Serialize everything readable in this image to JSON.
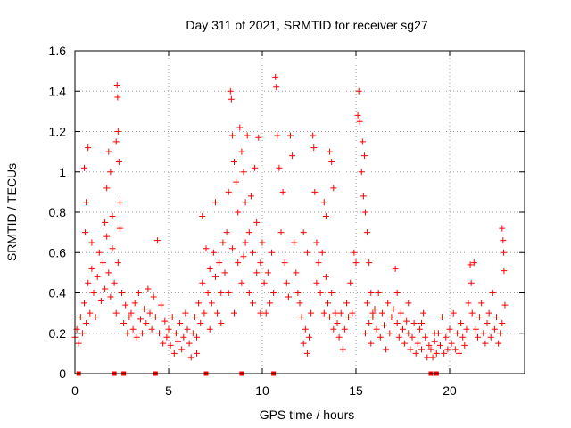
{
  "chart_data": {
    "type": "scatter",
    "title": "Day 311 of 2021, SRMTID for receiver sg27",
    "xlabel": "GPS time / hours",
    "ylabel": "SRMTID / TECUs",
    "xlim": [
      0,
      24
    ],
    "ylim": [
      0,
      1.6
    ],
    "x_ticks": [
      0,
      5,
      10,
      15,
      20
    ],
    "x_tick_labels": [
      "0",
      "5",
      "10",
      "15",
      "20"
    ],
    "y_ticks": [
      0,
      0.2,
      0.4,
      0.6,
      0.8,
      1,
      1.2,
      1.4,
      1.6
    ],
    "y_tick_labels": [
      "0",
      "0.2",
      "0.4",
      "0.6",
      "0.8",
      "1",
      "1.2",
      "1.4",
      "1.6"
    ],
    "grid": true,
    "marker": "+",
    "color": "#ff0000",
    "baseline_markers_x": [
      0.2,
      2.1,
      2.6,
      4.3,
      7.0,
      8.9,
      10.6,
      19.0,
      19.3
    ],
    "series": [
      {
        "name": "SRMTID",
        "points": [
          [
            0.0,
            0.18
          ],
          [
            0.1,
            0.22
          ],
          [
            0.2,
            0.15
          ],
          [
            0.3,
            0.28
          ],
          [
            0.4,
            0.2
          ],
          [
            0.5,
            0.35
          ],
          [
            0.6,
            0.25
          ],
          [
            0.7,
            0.45
          ],
          [
            0.8,
            0.3
          ],
          [
            0.9,
            0.52
          ],
          [
            1.0,
            0.4
          ],
          [
            1.1,
            0.28
          ],
          [
            1.2,
            0.48
          ],
          [
            1.3,
            0.6
          ],
          [
            1.4,
            0.36
          ],
          [
            1.5,
            0.55
          ],
          [
            1.6,
            0.42
          ],
          [
            1.7,
            0.68
          ],
          [
            1.8,
            0.5
          ],
          [
            1.9,
            0.38
          ],
          [
            2.0,
            0.62
          ],
          [
            2.1,
            0.45
          ],
          [
            2.2,
            0.3
          ],
          [
            2.3,
            0.55
          ],
          [
            2.4,
            0.72
          ],
          [
            2.5,
            0.4
          ],
          [
            2.6,
            0.25
          ],
          [
            2.7,
            0.34
          ],
          [
            2.8,
            0.2
          ],
          [
            2.9,
            0.28
          ],
          [
            0.55,
            0.7
          ],
          [
            0.6,
            0.85
          ],
          [
            0.7,
            1.12
          ],
          [
            0.5,
            1.02
          ],
          [
            1.7,
            0.92
          ],
          [
            1.8,
            1.1
          ],
          [
            1.9,
            1.0
          ],
          [
            2.0,
            0.78
          ],
          [
            2.2,
            1.15
          ],
          [
            2.25,
            1.43
          ],
          [
            2.28,
            1.37
          ],
          [
            2.3,
            1.2
          ],
          [
            2.35,
            1.05
          ],
          [
            2.4,
            0.85
          ],
          [
            1.6,
            0.75
          ],
          [
            0.9,
            0.65
          ],
          [
            3.0,
            0.3
          ],
          [
            3.1,
            0.22
          ],
          [
            3.2,
            0.35
          ],
          [
            3.3,
            0.18
          ],
          [
            3.4,
            0.4
          ],
          [
            3.5,
            0.27
          ],
          [
            3.6,
            0.2
          ],
          [
            3.7,
            0.32
          ],
          [
            3.8,
            0.25
          ],
          [
            3.9,
            0.42
          ],
          [
            4.0,
            0.3
          ],
          [
            4.1,
            0.22
          ],
          [
            4.2,
            0.38
          ],
          [
            4.3,
            0.28
          ],
          [
            4.4,
            0.66
          ],
          [
            4.5,
            0.2
          ],
          [
            4.6,
            0.34
          ],
          [
            4.7,
            0.15
          ],
          [
            4.8,
            0.26
          ],
          [
            4.9,
            0.18
          ],
          [
            5.0,
            0.22
          ],
          [
            5.1,
            0.14
          ],
          [
            5.2,
            0.28
          ],
          [
            5.3,
            0.1
          ],
          [
            5.4,
            0.2
          ],
          [
            5.5,
            0.16
          ],
          [
            5.6,
            0.25
          ],
          [
            5.7,
            0.12
          ],
          [
            5.8,
            0.18
          ],
          [
            5.9,
            0.3
          ],
          [
            6.0,
            0.22
          ],
          [
            6.1,
            0.15
          ],
          [
            6.2,
            0.08
          ],
          [
            6.3,
            0.2
          ],
          [
            6.4,
            0.28
          ],
          [
            6.5,
            0.18
          ],
          [
            6.6,
            0.35
          ],
          [
            6.7,
            0.25
          ],
          [
            6.8,
            0.45
          ],
          [
            6.9,
            0.3
          ],
          [
            7.0,
            0.62
          ],
          [
            7.1,
            0.4
          ],
          [
            7.2,
            0.52
          ],
          [
            7.3,
            0.35
          ],
          [
            7.4,
            0.6
          ],
          [
            7.5,
            0.48
          ],
          [
            7.6,
            0.3
          ],
          [
            7.7,
            0.55
          ],
          [
            7.8,
            0.4
          ],
          [
            7.9,
            0.65
          ],
          [
            6.8,
            0.78
          ],
          [
            7.5,
            0.85
          ],
          [
            7.8,
            0.25
          ],
          [
            7.2,
            0.22
          ],
          [
            6.5,
            0.1
          ],
          [
            8.0,
            0.5
          ],
          [
            8.1,
            0.7
          ],
          [
            8.2,
            0.9
          ],
          [
            8.3,
            1.4
          ],
          [
            8.35,
            1.36
          ],
          [
            8.4,
            1.18
          ],
          [
            8.5,
            1.05
          ],
          [
            8.6,
            0.95
          ],
          [
            8.7,
            0.8
          ],
          [
            8.8,
            1.22
          ],
          [
            8.9,
            1.1
          ],
          [
            9.0,
            1.0
          ],
          [
            9.1,
            0.85
          ],
          [
            9.2,
            1.18
          ],
          [
            9.3,
            0.7
          ],
          [
            9.4,
            0.88
          ],
          [
            9.5,
            0.6
          ],
          [
            9.6,
            1.02
          ],
          [
            9.7,
            0.75
          ],
          [
            9.8,
            1.17
          ],
          [
            9.9,
            0.55
          ],
          [
            8.2,
            0.4
          ],
          [
            8.5,
            0.3
          ],
          [
            8.7,
            0.55
          ],
          [
            8.9,
            0.45
          ],
          [
            9.1,
            0.65
          ],
          [
            9.3,
            0.4
          ],
          [
            9.5,
            0.35
          ],
          [
            9.7,
            0.5
          ],
          [
            9.9,
            0.3
          ],
          [
            8.4,
            0.62
          ],
          [
            9.0,
            0.58
          ],
          [
            10.0,
            0.65
          ],
          [
            10.1,
            0.45
          ],
          [
            10.2,
            0.3
          ],
          [
            10.3,
            0.5
          ],
          [
            10.4,
            0.35
          ],
          [
            10.5,
            0.6
          ],
          [
            10.6,
            0.4
          ],
          [
            10.7,
            1.47
          ],
          [
            10.75,
            1.42
          ],
          [
            10.8,
            1.18
          ],
          [
            10.9,
            1.02
          ],
          [
            11.0,
            0.7
          ],
          [
            11.1,
            0.9
          ],
          [
            11.2,
            0.55
          ],
          [
            11.3,
            0.45
          ],
          [
            11.4,
            0.38
          ],
          [
            11.5,
            1.18
          ],
          [
            11.6,
            1.08
          ],
          [
            11.7,
            0.65
          ],
          [
            11.8,
            0.5
          ],
          [
            11.9,
            0.4
          ],
          [
            12.0,
            0.35
          ],
          [
            12.1,
            0.28
          ],
          [
            12.2,
            0.15
          ],
          [
            12.3,
            0.22
          ],
          [
            12.4,
            0.1
          ],
          [
            12.5,
            0.18
          ],
          [
            12.6,
            0.3
          ],
          [
            12.7,
            1.18
          ],
          [
            12.75,
            1.12
          ],
          [
            12.8,
            0.9
          ],
          [
            12.9,
            0.45
          ],
          [
            13.0,
            0.55
          ],
          [
            13.1,
            0.4
          ],
          [
            13.2,
            0.6
          ],
          [
            13.3,
            0.3
          ],
          [
            13.4,
            0.48
          ],
          [
            13.5,
            0.35
          ],
          [
            13.6,
            0.28
          ],
          [
            13.7,
            0.4
          ],
          [
            13.8,
            0.22
          ],
          [
            13.9,
            0.3
          ],
          [
            12.2,
            0.7
          ],
          [
            12.4,
            0.6
          ],
          [
            12.9,
            0.65
          ],
          [
            13.3,
            0.85
          ],
          [
            13.4,
            0.78
          ],
          [
            13.6,
            1.1
          ],
          [
            13.7,
            1.05
          ],
          [
            13.8,
            0.92
          ],
          [
            14.0,
            0.25
          ],
          [
            14.1,
            0.18
          ],
          [
            14.2,
            0.3
          ],
          [
            14.3,
            0.12
          ],
          [
            14.4,
            0.22
          ],
          [
            14.5,
            0.35
          ],
          [
            14.6,
            0.28
          ],
          [
            14.7,
            0.45
          ],
          [
            14.8,
            0.3
          ],
          [
            14.9,
            0.6
          ],
          [
            15.0,
            0.55
          ],
          [
            15.1,
            1.28
          ],
          [
            15.15,
            1.4
          ],
          [
            15.2,
            1.25
          ],
          [
            15.3,
            1.0
          ],
          [
            15.4,
            0.88
          ],
          [
            15.5,
            0.8
          ],
          [
            15.6,
            0.7
          ],
          [
            15.7,
            0.55
          ],
          [
            15.8,
            0.4
          ],
          [
            15.9,
            0.3
          ],
          [
            15.35,
            1.15
          ],
          [
            15.45,
            1.08
          ],
          [
            15.5,
            0.2
          ],
          [
            15.6,
            0.35
          ],
          [
            15.7,
            0.25
          ],
          [
            15.8,
            0.15
          ],
          [
            15.9,
            0.28
          ],
          [
            16.0,
            0.32
          ],
          [
            16.1,
            0.22
          ],
          [
            16.2,
            0.4
          ],
          [
            16.3,
            0.18
          ],
          [
            16.4,
            0.3
          ],
          [
            16.5,
            0.24
          ],
          [
            16.6,
            0.12
          ],
          [
            16.7,
            0.35
          ],
          [
            16.8,
            0.2
          ],
          [
            16.9,
            0.28
          ],
          [
            17.0,
            0.32
          ],
          [
            17.1,
            0.52
          ],
          [
            17.2,
            0.25
          ],
          [
            17.3,
            0.18
          ],
          [
            17.4,
            0.3
          ],
          [
            17.5,
            0.22
          ],
          [
            17.6,
            0.15
          ],
          [
            17.7,
            0.26
          ],
          [
            17.8,
            0.2
          ],
          [
            17.9,
            0.12
          ],
          [
            18.0,
            0.18
          ],
          [
            18.1,
            0.25
          ],
          [
            18.2,
            0.1
          ],
          [
            18.3,
            0.15
          ],
          [
            18.4,
            0.22
          ],
          [
            18.5,
            0.12
          ],
          [
            18.6,
            0.3
          ],
          [
            18.7,
            0.18
          ],
          [
            18.8,
            0.08
          ],
          [
            18.9,
            0.14
          ],
          [
            17.2,
            0.4
          ],
          [
            17.8,
            0.35
          ],
          [
            18.5,
            0.25
          ],
          [
            19.2,
            0.2
          ],
          [
            19.0,
            0.12
          ],
          [
            19.1,
            0.08
          ],
          [
            19.2,
            0.16
          ],
          [
            19.3,
            0.1
          ],
          [
            19.4,
            0.2
          ],
          [
            19.5,
            0.14
          ],
          [
            19.6,
            0.28
          ],
          [
            19.7,
            0.1
          ],
          [
            19.8,
            0.18
          ],
          [
            19.9,
            0.12
          ],
          [
            20.0,
            0.22
          ],
          [
            20.1,
            0.15
          ],
          [
            20.2,
            0.3
          ],
          [
            20.3,
            0.12
          ],
          [
            20.4,
            0.2
          ],
          [
            20.5,
            0.1
          ],
          [
            20.6,
            0.25
          ],
          [
            20.7,
            0.18
          ],
          [
            20.8,
            0.14
          ],
          [
            20.9,
            0.22
          ],
          [
            21.0,
            0.35
          ],
          [
            21.1,
            0.54
          ],
          [
            21.15,
            0.45
          ],
          [
            21.2,
            0.3
          ],
          [
            21.3,
            0.55
          ],
          [
            21.4,
            0.22
          ],
          [
            21.5,
            0.18
          ],
          [
            21.6,
            0.28
          ],
          [
            21.7,
            0.35
          ],
          [
            21.8,
            0.2
          ],
          [
            21.9,
            0.15
          ],
          [
            22.0,
            0.25
          ],
          [
            22.1,
            0.3
          ],
          [
            22.2,
            0.18
          ],
          [
            22.3,
            0.4
          ],
          [
            22.4,
            0.22
          ],
          [
            22.5,
            0.28
          ],
          [
            22.6,
            0.15
          ],
          [
            22.7,
            0.2
          ],
          [
            22.8,
            0.72
          ],
          [
            22.85,
            0.66
          ],
          [
            22.88,
            0.6
          ],
          [
            22.9,
            0.51
          ],
          [
            22.95,
            0.34
          ],
          [
            22.8,
            0.25
          ]
        ]
      }
    ]
  }
}
